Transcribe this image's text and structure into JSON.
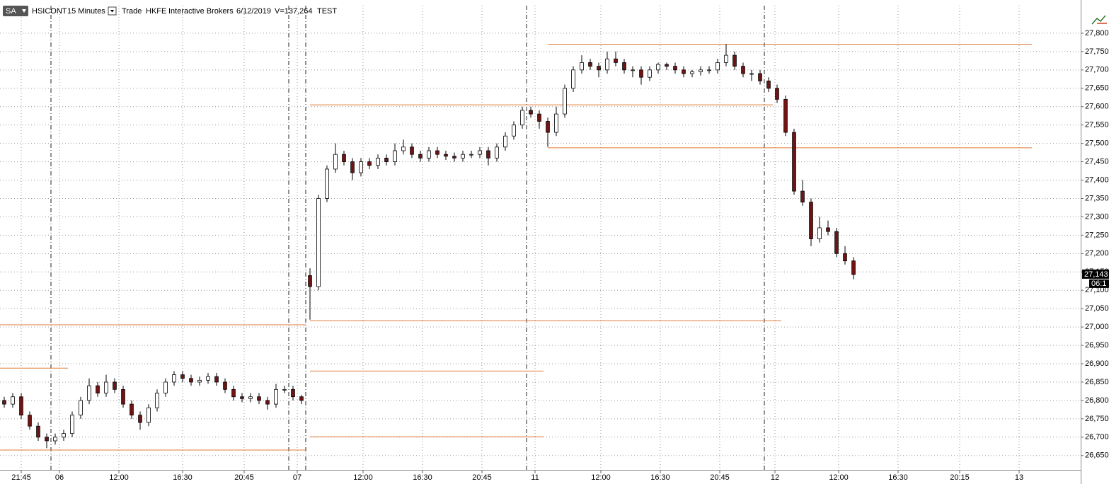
{
  "header": {
    "symbol_button": "SA",
    "symbol": "HSICONT",
    "interval": "15 Minutes",
    "type": "Trade",
    "exchange": "HKFE",
    "broker": "Interactive Brokers",
    "date": "6/12/2019",
    "volume": "V=137,264",
    "mode": "TEST"
  },
  "chart_data": {
    "type": "candlestick",
    "x": [
      1,
      3,
      5,
      7,
      9,
      11,
      13,
      15,
      17,
      19,
      21,
      23,
      25,
      27,
      29,
      31,
      33,
      35,
      37,
      39,
      41,
      43,
      45,
      47,
      49,
      51,
      53,
      55,
      57,
      59,
      61,
      63,
      65,
      67,
      69,
      71,
      73,
      75,
      77,
      79,
      81,
      83,
      85,
      87,
      89,
      91,
      93,
      95,
      97,
      99,
      101,
      103,
      105,
      107,
      109,
      111,
      113,
      115,
      117,
      119,
      121,
      123,
      125,
      127,
      129,
      131,
      133,
      135,
      137,
      139,
      141,
      143,
      145,
      147,
      149,
      151,
      153,
      155,
      157,
      159,
      161,
      163,
      165,
      167,
      169,
      171,
      173,
      175,
      177,
      179,
      181,
      183,
      185,
      187,
      189,
      191,
      193,
      195,
      197,
      199,
      201
    ],
    "open": [
      26800,
      26790,
      26810,
      26760,
      26730,
      26700,
      26690,
      26700,
      26710,
      26760,
      26800,
      26840,
      26820,
      26850,
      26830,
      26790,
      26760,
      26740,
      26780,
      26820,
      26850,
      26870,
      26860,
      26850,
      26855,
      26865,
      26850,
      26830,
      26810,
      26805,
      26810,
      26800,
      26790,
      26830,
      26830,
      26810,
      27140,
      27110,
      27350,
      27430,
      27470,
      27450,
      27420,
      27450,
      27440,
      27460,
      27450,
      27480,
      27490,
      27470,
      27460,
      27480,
      27470,
      27465,
      27460,
      27470,
      27470,
      27480,
      27460,
      27490,
      27520,
      27550,
      27590,
      27580,
      27560,
      27530,
      27580,
      27650,
      27700,
      27720,
      27710,
      27700,
      27730,
      27720,
      27700,
      27700,
      27680,
      27700,
      27715,
      27710,
      27700,
      27690,
      27695,
      27700,
      27700,
      27720,
      27740,
      27710,
      27690,
      27690,
      27670,
      27650,
      27620,
      27530,
      27370,
      27340,
      27240,
      27270,
      27260,
      27200,
      27180
    ],
    "high": [
      26810,
      26820,
      26820,
      26770,
      26740,
      26710,
      26710,
      26720,
      26770,
      26810,
      26860,
      26850,
      26870,
      26860,
      26840,
      26800,
      26770,
      26790,
      26830,
      26860,
      26880,
      26880,
      26870,
      26865,
      26875,
      26875,
      26860,
      26840,
      26820,
      26820,
      26820,
      26810,
      26845,
      26840,
      26840,
      26815,
      27160,
      27360,
      27440,
      27500,
      27480,
      27460,
      27460,
      27460,
      27470,
      27470,
      27500,
      27510,
      27500,
      27480,
      27490,
      27490,
      27480,
      27475,
      27480,
      27480,
      27490,
      27490,
      27500,
      27530,
      27560,
      27600,
      27600,
      27590,
      27570,
      27600,
      27660,
      27710,
      27740,
      27730,
      27720,
      27750,
      27750,
      27730,
      27710,
      27710,
      27710,
      27720,
      27720,
      27720,
      27710,
      27700,
      27710,
      27710,
      27730,
      27770,
      27750,
      27720,
      27700,
      27700,
      27680,
      27660,
      27630,
      27540,
      27400,
      27350,
      27300,
      27290,
      27270,
      27220,
      27190
    ],
    "low": [
      26780,
      26780,
      26750,
      26720,
      26690,
      26670,
      26680,
      26690,
      26700,
      26750,
      26790,
      26810,
      26810,
      26820,
      26780,
      26750,
      26720,
      26730,
      26770,
      26810,
      26840,
      26850,
      26840,
      26840,
      26845,
      26840,
      26820,
      26800,
      26795,
      26795,
      26790,
      26775,
      26780,
      26820,
      26800,
      26790,
      27020,
      27100,
      27340,
      27420,
      27440,
      27400,
      27410,
      27430,
      27430,
      27440,
      27440,
      27470,
      27460,
      27450,
      27450,
      27460,
      27455,
      27450,
      27450,
      27460,
      27460,
      27440,
      27450,
      27480,
      27510,
      27540,
      27570,
      27540,
      27490,
      27520,
      27570,
      27640,
      27690,
      27700,
      27680,
      27690,
      27710,
      27690,
      27680,
      27660,
      27670,
      27690,
      27700,
      27690,
      27680,
      27680,
      27685,
      27690,
      27690,
      27710,
      27700,
      27680,
      27670,
      27660,
      27640,
      27610,
      27520,
      27360,
      27330,
      27220,
      27230,
      27250,
      27190,
      27170,
      27130
    ],
    "close": [
      26790,
      26810,
      26760,
      26730,
      26700,
      26690,
      26700,
      26710,
      26760,
      26800,
      26840,
      26820,
      26850,
      26830,
      26790,
      26760,
      26740,
      26780,
      26820,
      26850,
      26870,
      26860,
      26850,
      26855,
      26865,
      26850,
      26830,
      26810,
      26805,
      26810,
      26800,
      26790,
      26830,
      26830,
      26810,
      26800,
      27110,
      27350,
      27430,
      27470,
      27450,
      27420,
      27450,
      27440,
      27460,
      27450,
      27480,
      27490,
      27470,
      27460,
      27480,
      27470,
      27465,
      27460,
      27470,
      27470,
      27480,
      27460,
      27490,
      27520,
      27550,
      27590,
      27580,
      27560,
      27530,
      27580,
      27650,
      27700,
      27720,
      27710,
      27700,
      27730,
      27720,
      27700,
      27700,
      27680,
      27700,
      27715,
      27710,
      27700,
      27690,
      27695,
      27700,
      27700,
      27720,
      27740,
      27710,
      27690,
      27690,
      27670,
      27650,
      27620,
      27530,
      27370,
      27340,
      27240,
      27270,
      27260,
      27200,
      27180,
      27143
    ],
    "up_color": "#ffffff",
    "down_color": "#6e1414",
    "xlim": [
      0,
      254.5
    ],
    "xticks": [
      {
        "value": 5,
        "label": "21:45"
      },
      {
        "value": 14,
        "label": "06"
      },
      {
        "value": 28,
        "label": "12:00"
      },
      {
        "value": 43,
        "label": "16:30"
      },
      {
        "value": 57.5,
        "label": "20:45"
      },
      {
        "value": 70,
        "label": "07"
      },
      {
        "value": 85.5,
        "label": "12:00"
      },
      {
        "value": 99.5,
        "label": "16:30"
      },
      {
        "value": 113.5,
        "label": "20:45"
      },
      {
        "value": 126,
        "label": "11"
      },
      {
        "value": 141.5,
        "label": "12:00"
      },
      {
        "value": 155.5,
        "label": "16:30"
      },
      {
        "value": 169.5,
        "label": "20:45"
      },
      {
        "value": 182.5,
        "label": "12"
      },
      {
        "value": 197.5,
        "label": "12:00"
      },
      {
        "value": 211.5,
        "label": "16:30"
      },
      {
        "value": 226,
        "label": "20:15"
      },
      {
        "value": 240,
        "label": "13"
      }
    ],
    "ylim": [
      26611,
      27875
    ],
    "yticks": [
      {
        "value": 26650,
        "label": "26,650"
      },
      {
        "value": 26700,
        "label": "26,700"
      },
      {
        "value": 26750,
        "label": "26,750"
      },
      {
        "value": 26800,
        "label": "26,800"
      },
      {
        "value": 26850,
        "label": "26,850"
      },
      {
        "value": 26900,
        "label": "26,900"
      },
      {
        "value": 26950,
        "label": "26,950"
      },
      {
        "value": 27000,
        "label": "27,000"
      },
      {
        "value": 27050,
        "label": "27,050"
      },
      {
        "value": 27100,
        "label": "27,100"
      },
      {
        "value": 27150,
        "label": "27,150"
      },
      {
        "value": 27200,
        "label": "27,200"
      },
      {
        "value": 27250,
        "label": "27,250"
      },
      {
        "value": 27300,
        "label": "27,300"
      },
      {
        "value": 27350,
        "label": "27,350"
      },
      {
        "value": 27400,
        "label": "27,400"
      },
      {
        "value": 27450,
        "label": "27,450"
      },
      {
        "value": 27500,
        "label": "27,500"
      },
      {
        "value": 27550,
        "label": "27,550"
      },
      {
        "value": 27600,
        "label": "27,600"
      },
      {
        "value": 27650,
        "label": "27,650"
      },
      {
        "value": 27700,
        "label": "27,700"
      },
      {
        "value": 27750,
        "label": "27,750"
      },
      {
        "value": 27800,
        "label": "27,800"
      }
    ],
    "grid": true,
    "session_breaks": [
      12,
      68,
      72,
      124,
      180
    ],
    "levels": [
      {
        "value": 27770,
        "x": [
          129,
          243
        ]
      },
      {
        "value": 27605,
        "x": [
          73,
          182
        ]
      },
      {
        "value": 27488,
        "x": [
          129,
          243
        ]
      },
      {
        "value": 27017,
        "x": [
          73,
          184
        ]
      },
      {
        "value": 27006,
        "x": [
          0,
          72
        ]
      },
      {
        "value": 26888,
        "x": [
          0,
          16
        ]
      },
      {
        "value": 26880,
        "x": [
          73,
          128
        ]
      },
      {
        "value": 26701,
        "x": [
          73,
          128
        ]
      },
      {
        "value": 26665,
        "x": [
          0,
          72
        ]
      }
    ],
    "level_color": "#e07b39",
    "last_price": {
      "value": 27143,
      "label": "27,143"
    },
    "countdown": "06:1"
  }
}
